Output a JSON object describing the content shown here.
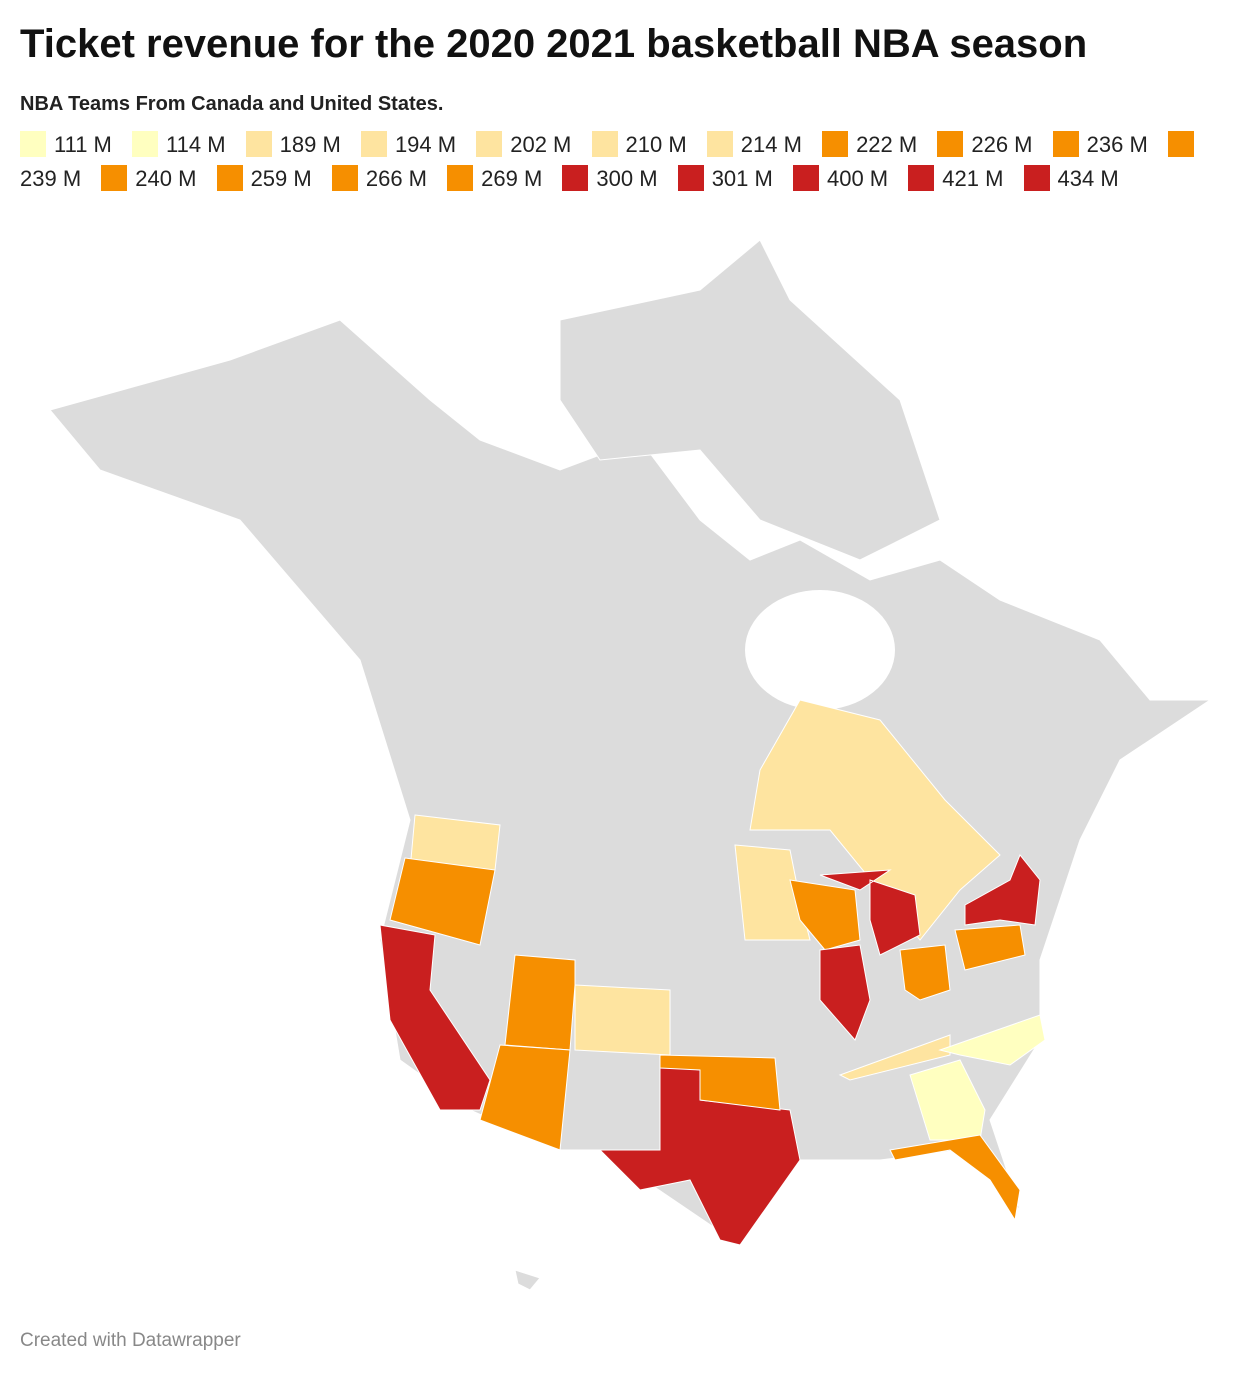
{
  "header": {
    "title": "Ticket revenue for the 2020 2021 basketball NBA season",
    "subtitle": "NBA Teams From Canada and United States."
  },
  "legend": [
    {
      "label": "111 M",
      "color": "#ffffc0"
    },
    {
      "label": "114 M",
      "color": "#ffffc0"
    },
    {
      "label": "189 M",
      "color": "#fee4a0"
    },
    {
      "label": "194 M",
      "color": "#fee4a0"
    },
    {
      "label": "202 M",
      "color": "#fee4a0"
    },
    {
      "label": "210 M",
      "color": "#fee4a0"
    },
    {
      "label": "214 M",
      "color": "#fee4a0"
    },
    {
      "label": "222 M",
      "color": "#f68f00"
    },
    {
      "label": "226 M",
      "color": "#f68f00"
    },
    {
      "label": "236 M",
      "color": "#f68f00"
    },
    {
      "label": "239 M",
      "color": "#f68f00"
    },
    {
      "label": "240 M",
      "color": "#f68f00"
    },
    {
      "label": "259 M",
      "color": "#f68f00"
    },
    {
      "label": "266 M",
      "color": "#f68f00"
    },
    {
      "label": "269 M",
      "color": "#f68f00"
    },
    {
      "label": "300 M",
      "color": "#c91f1f"
    },
    {
      "label": "301 M",
      "color": "#c91f1f"
    },
    {
      "label": "400 M",
      "color": "#c91f1f"
    },
    {
      "label": "421 M",
      "color": "#c91f1f"
    },
    {
      "label": "434 M",
      "color": "#c91f1f"
    }
  ],
  "footer": "Created with Datawrapper"
}
